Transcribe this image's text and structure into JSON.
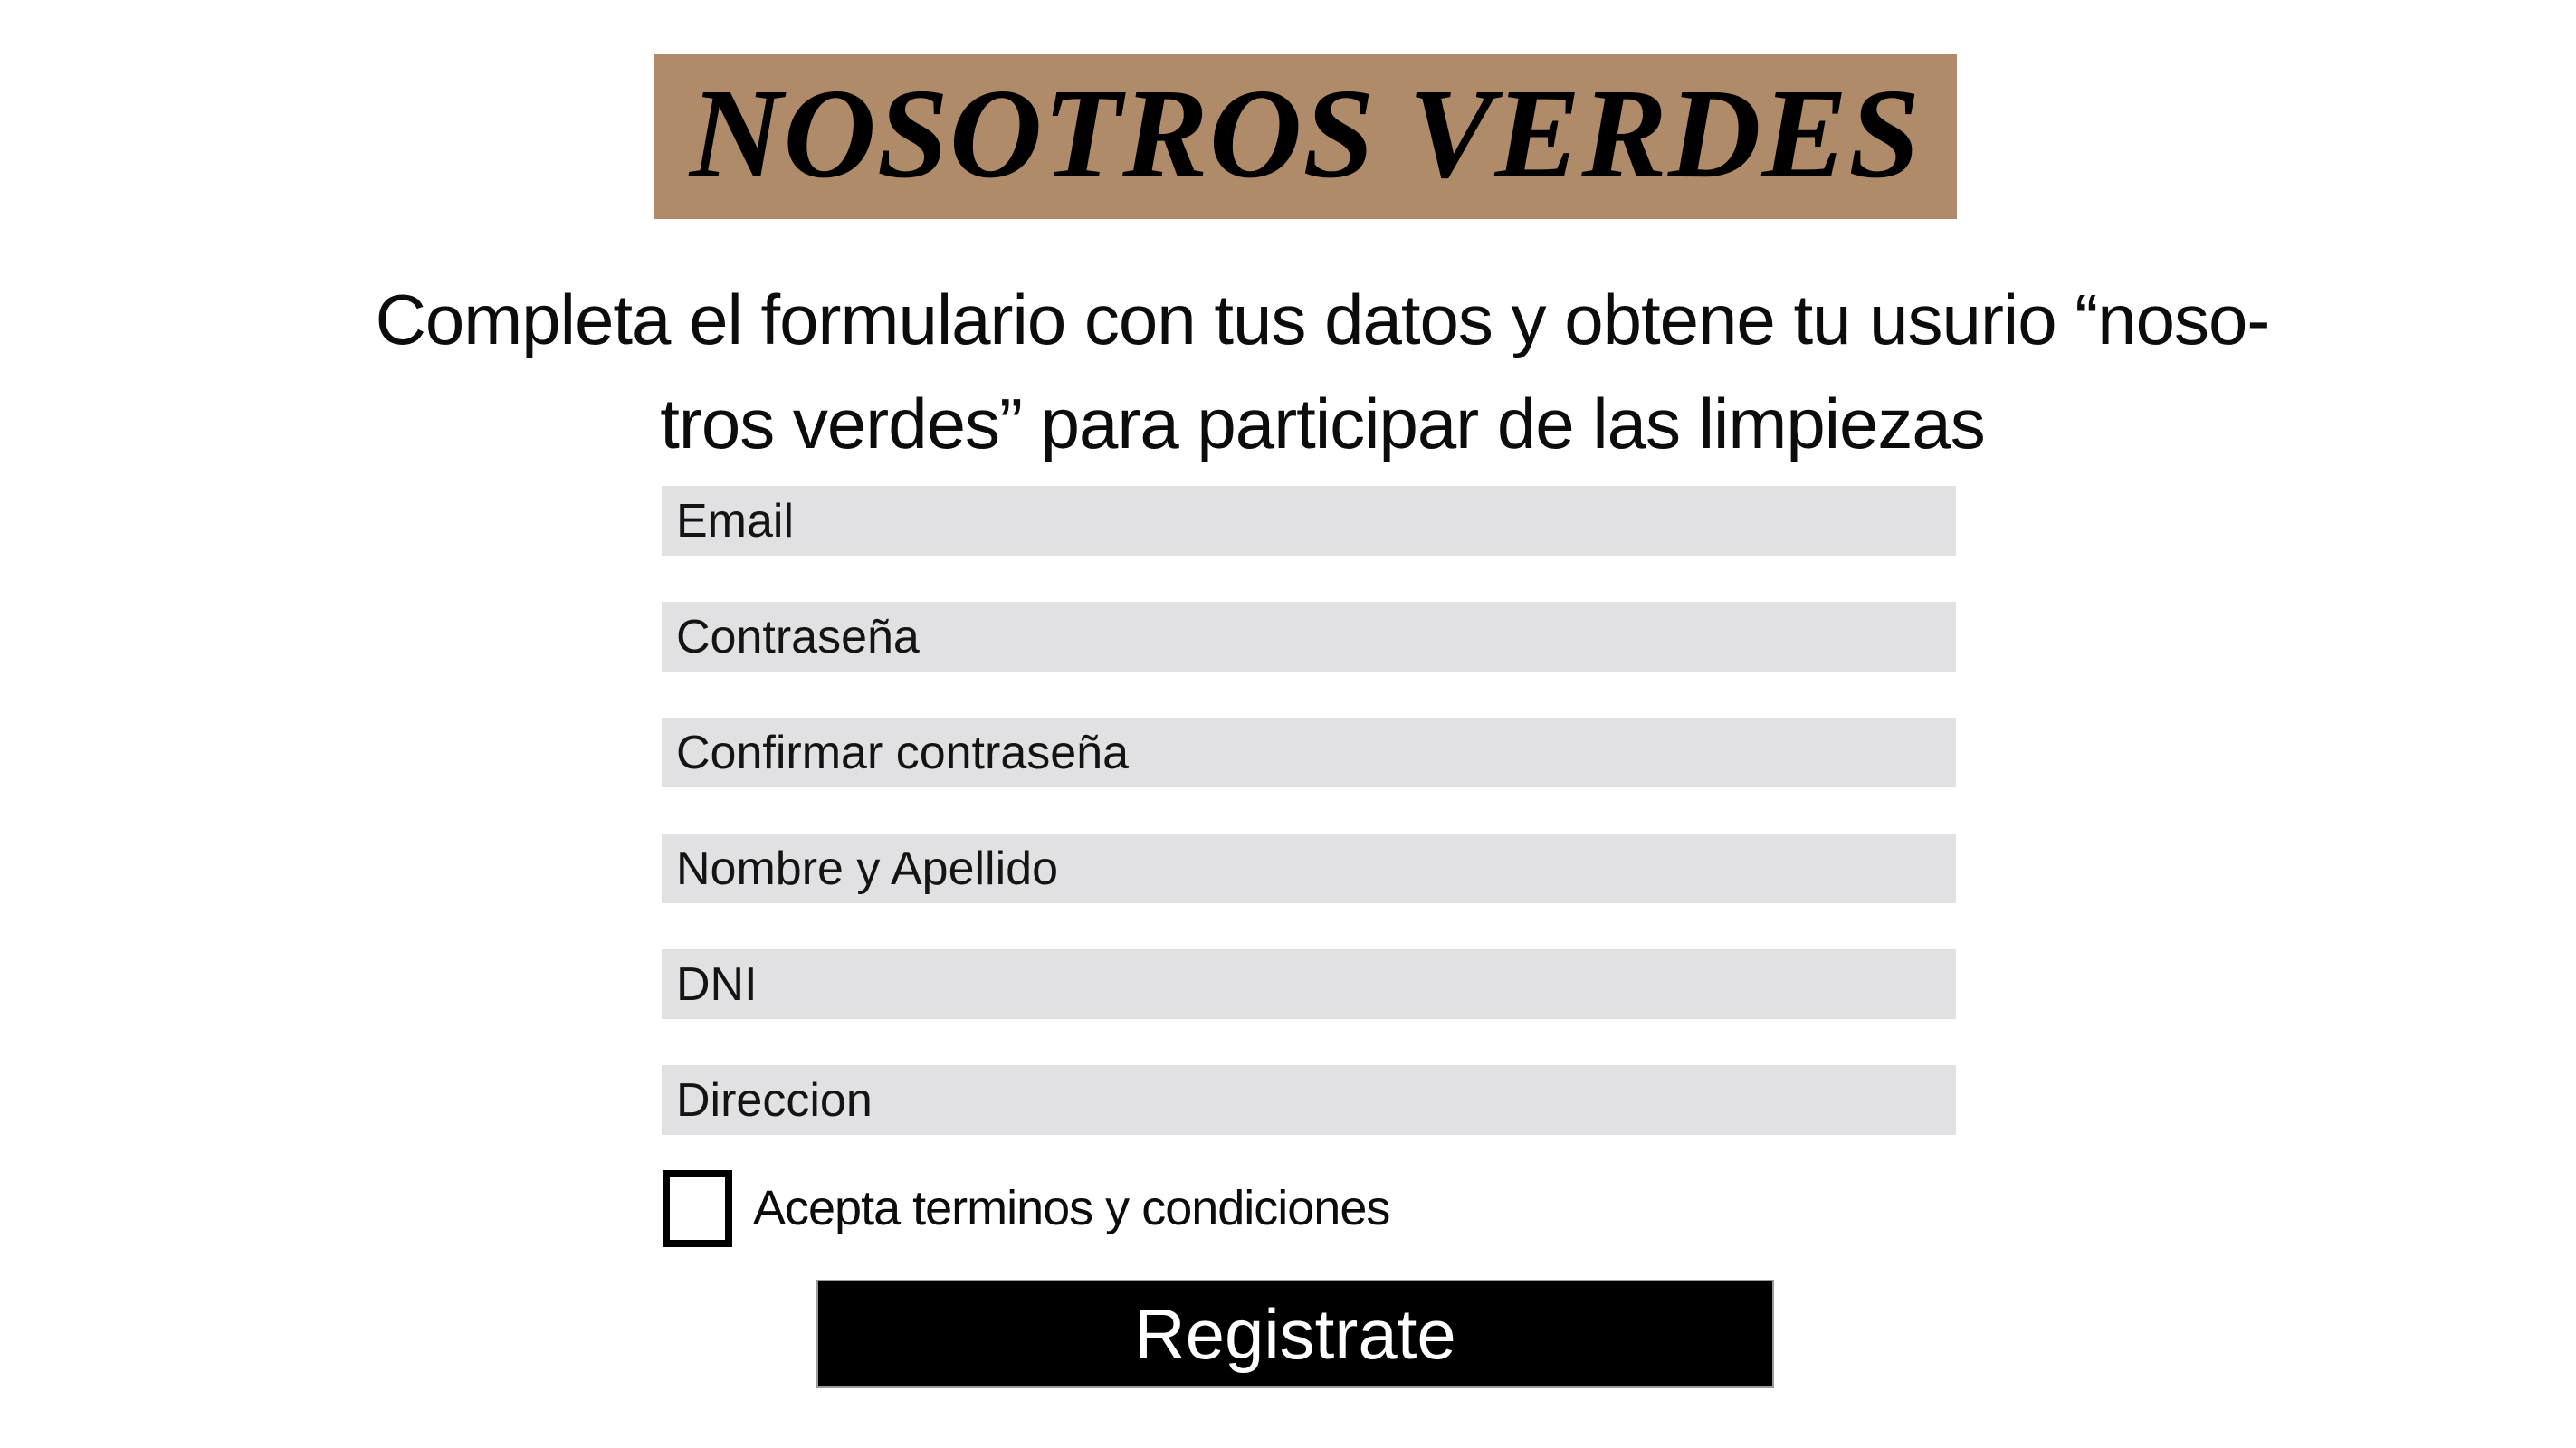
{
  "banner": {
    "title": "NOSOTROS VERDES",
    "background": "#b08b69",
    "text_color": "#000000"
  },
  "subtitle": {
    "line1": "Completa el formulario con tus datos y obtene tu usurio “noso-",
    "line2": "tros verdes” para participar de las limpiezas"
  },
  "form": {
    "field_background": "#e1e1e3",
    "fields": [
      {
        "name": "email",
        "placeholder": "Email",
        "value": ""
      },
      {
        "name": "password",
        "placeholder": "Contraseña",
        "value": ""
      },
      {
        "name": "confirm-password",
        "placeholder": "Confirmar contraseña",
        "value": ""
      },
      {
        "name": "full-name",
        "placeholder": "Nombre y Apellido",
        "value": ""
      },
      {
        "name": "dni",
        "placeholder": "DNI",
        "value": ""
      },
      {
        "name": "address",
        "placeholder": "Direccion",
        "value": ""
      }
    ],
    "checkbox": {
      "label": "Acepta terminos y condiciones",
      "checked": false
    },
    "submit": {
      "label": "Registrate",
      "background": "#000000",
      "text_color": "#ffffff"
    }
  }
}
